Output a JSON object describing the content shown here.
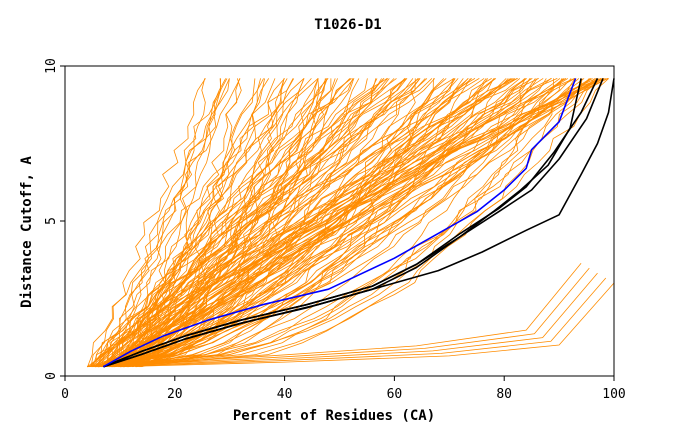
{
  "chart_data": {
    "type": "line",
    "title": "T1026-D1",
    "xlabel": "Percent of Residues (CA)",
    "ylabel": "Distance Cutoff, A",
    "xlim": [
      0,
      100
    ],
    "ylim": [
      0,
      10
    ],
    "xticks": [
      "0",
      "20",
      "40",
      "60",
      "80",
      "100"
    ],
    "yticks": [
      "0",
      "5",
      "10"
    ],
    "grid": false,
    "colors": {
      "background_models": "#ff8c00",
      "highlight_blue": "#0000ff",
      "highlight_black": "#000000",
      "axes": "#000000"
    },
    "series": [
      {
        "color": "#0000ff",
        "x": [
          7,
          12,
          18,
          26,
          36,
          48,
          60,
          68,
          75,
          80,
          84,
          85,
          90,
          93
        ],
        "y": [
          0.3,
          0.8,
          1.3,
          1.8,
          2.3,
          2.8,
          3.8,
          4.6,
          5.3,
          6.0,
          6.7,
          7.3,
          8.2,
          9.6
        ]
      },
      {
        "color": "#000000",
        "x": [
          7,
          14,
          22,
          32,
          44,
          56,
          64,
          72,
          78,
          83,
          88,
          92,
          94
        ],
        "y": [
          0.3,
          0.7,
          1.2,
          1.7,
          2.2,
          2.8,
          3.5,
          4.5,
          5.3,
          6.0,
          6.8,
          8.0,
          9.6
        ]
      },
      {
        "color": "#000000",
        "x": [
          7,
          14,
          22,
          32,
          44,
          56,
          64,
          72,
          79,
          84,
          89,
          94,
          97
        ],
        "y": [
          0.3,
          0.8,
          1.3,
          1.8,
          2.3,
          2.9,
          3.6,
          4.6,
          5.4,
          6.1,
          7.2,
          8.5,
          9.6
        ]
      },
      {
        "color": "#000000",
        "x": [
          7,
          14,
          22,
          32,
          44,
          56,
          64,
          72,
          79,
          85,
          90,
          95,
          98
        ],
        "y": [
          0.3,
          0.8,
          1.3,
          1.8,
          2.3,
          2.9,
          3.6,
          4.5,
          5.3,
          6.0,
          7.0,
          8.3,
          9.6
        ]
      },
      {
        "color": "#000000",
        "x": [
          7,
          14,
          22,
          32,
          46,
          58,
          68,
          76,
          84,
          90,
          94,
          97,
          99,
          100
        ],
        "y": [
          0.3,
          0.7,
          1.2,
          1.7,
          2.3,
          2.9,
          3.4,
          4.0,
          4.7,
          5.2,
          6.5,
          7.5,
          8.5,
          9.6
        ]
      }
    ],
    "background_models": {
      "count": 150,
      "y_range": [
        0.3,
        9.6
      ],
      "x_at_y0_3_range": [
        4,
        14
      ],
      "x_at_y9_6_range": [
        25,
        100
      ],
      "lower_flat_tail": {
        "x": [
          10,
          40,
          70,
          90,
          100
        ],
        "y": [
          0.3,
          0.45,
          0.65,
          1.0,
          3.0
        ]
      }
    }
  }
}
